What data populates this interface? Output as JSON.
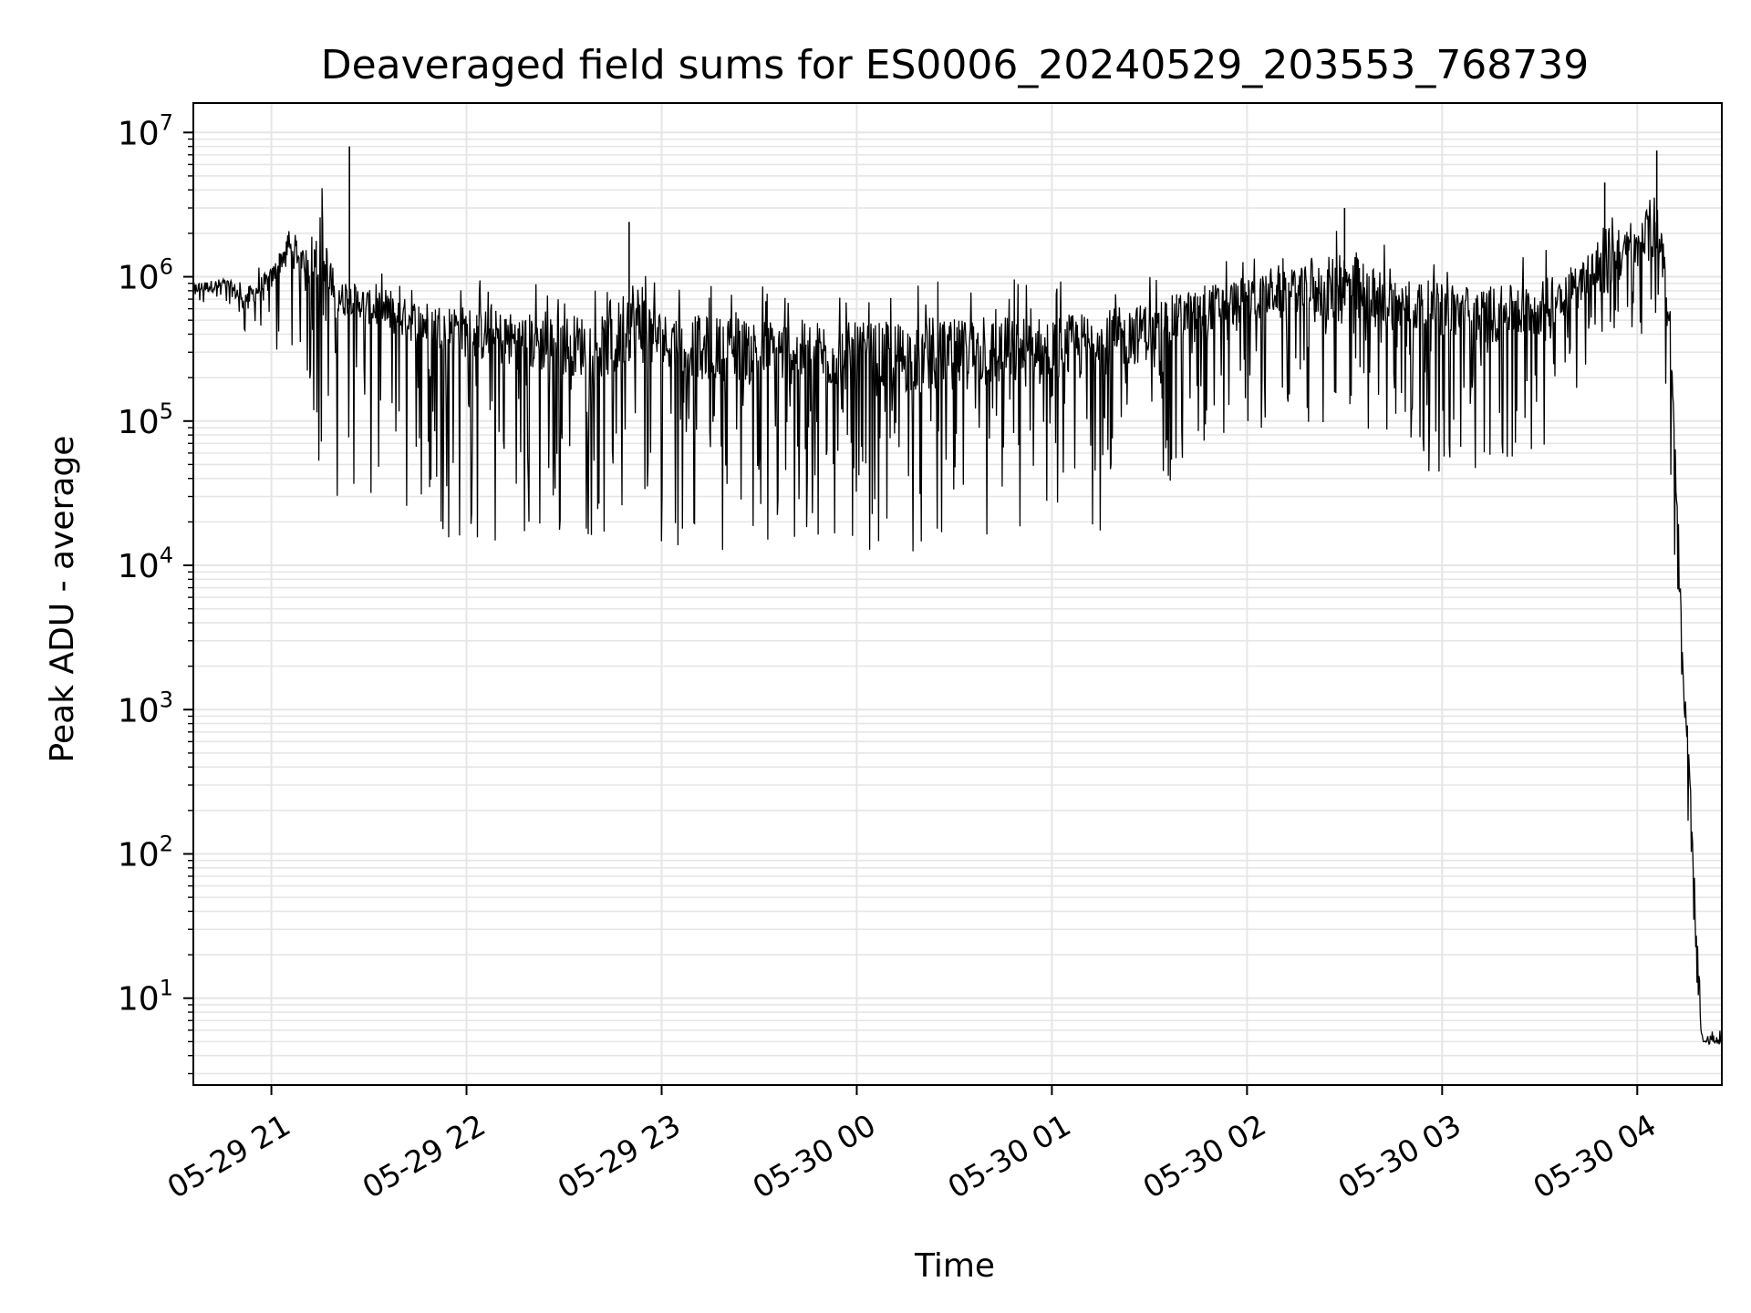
{
  "chart_data": {
    "type": "line",
    "title": "Deaveraged field sums for ES0006_20240529_203553_768739",
    "xlabel": "Time",
    "ylabel": "Peak ADU - average",
    "yscale": "log",
    "ylim": [
      2.5,
      16000000
    ],
    "xlim": [
      "2024-05-29 20:36",
      "2024-05-30 04:26"
    ],
    "grid": true,
    "grid_color": "#e6e6e6",
    "line_color": "#000000",
    "x_ticks": [
      {
        "value": "2024-05-29 21:00",
        "label": "05-29 21"
      },
      {
        "value": "2024-05-29 22:00",
        "label": "05-29 22"
      },
      {
        "value": "2024-05-29 23:00",
        "label": "05-29 23"
      },
      {
        "value": "2024-05-30 00:00",
        "label": "05-30 00"
      },
      {
        "value": "2024-05-30 01:00",
        "label": "05-30 01"
      },
      {
        "value": "2024-05-30 02:00",
        "label": "05-30 02"
      },
      {
        "value": "2024-05-30 03:00",
        "label": "05-30 03"
      },
      {
        "value": "2024-05-30 04:00",
        "label": "05-30 04"
      }
    ],
    "y_ticks": [
      {
        "value": 10,
        "base": "10",
        "exp": "1"
      },
      {
        "value": 100,
        "base": "10",
        "exp": "2"
      },
      {
        "value": 1000,
        "base": "10",
        "exp": "3"
      },
      {
        "value": 10000,
        "base": "10",
        "exp": "4"
      },
      {
        "value": 100000,
        "base": "10",
        "exp": "5"
      },
      {
        "value": 1000000,
        "base": "10",
        "exp": "6"
      },
      {
        "value": 10000000,
        "base": "10",
        "exp": "7"
      }
    ],
    "series": [
      {
        "x": [
          "2024-05-29 20:36",
          "2024-05-29 20:46",
          "2024-05-29 20:52",
          "2024-05-29 21:00",
          "2024-05-29 21:05",
          "2024-05-29 21:10",
          "2024-05-29 21:15",
          "2024-05-29 21:20",
          "2024-05-29 21:25",
          "2024-05-29 21:30",
          "2024-05-29 21:40",
          "2024-05-29 21:50",
          "2024-05-29 22:00",
          "2024-05-29 22:15",
          "2024-05-29 22:30",
          "2024-05-29 22:45",
          "2024-05-29 22:50",
          "2024-05-29 23:00",
          "2024-05-29 23:15",
          "2024-05-29 23:30",
          "2024-05-29 23:45",
          "2024-05-30 00:00",
          "2024-05-30 00:15",
          "2024-05-30 00:30",
          "2024-05-30 00:45",
          "2024-05-30 01:00",
          "2024-05-30 01:15",
          "2024-05-30 01:30",
          "2024-05-30 01:45",
          "2024-05-30 02:00",
          "2024-05-30 02:15",
          "2024-05-30 02:30",
          "2024-05-30 02:45",
          "2024-05-30 03:00",
          "2024-05-30 03:15",
          "2024-05-30 03:30",
          "2024-05-30 03:45",
          "2024-05-30 03:50",
          "2024-05-30 03:55",
          "2024-05-30 04:00",
          "2024-05-30 04:05",
          "2024-05-30 04:08",
          "2024-05-30 04:10",
          "2024-05-30 04:14",
          "2024-05-30 04:16",
          "2024-05-30 04:18",
          "2024-05-30 04:20",
          "2024-05-30 04:21",
          "2024-05-30 04:22",
          "2024-05-30 04:26"
        ],
        "y": [
          800000,
          850000,
          650000,
          900000,
          1500000,
          1200000,
          800000,
          600000,
          650000,
          550000,
          450000,
          400000,
          350000,
          300000,
          280000,
          260000,
          400000,
          300000,
          260000,
          250000,
          240000,
          220000,
          220000,
          230000,
          240000,
          240000,
          280000,
          350000,
          500000,
          600000,
          700000,
          650000,
          550000,
          500000,
          450000,
          500000,
          900000,
          1000000,
          1200000,
          1300000,
          1800000,
          1200000,
          500000,
          2000,
          300,
          20,
          5,
          5,
          5,
          5
        ],
        "min_envelope": [
          600000,
          650000,
          400000,
          300000,
          250000,
          300000,
          40000,
          30000,
          25000,
          20000,
          18000,
          15000,
          14000,
          13000,
          15000,
          16000,
          15000,
          14000,
          13000,
          12000,
          11000,
          13000,
          12000,
          13000,
          13000,
          14000,
          15000,
          30000,
          50000,
          80000,
          90000,
          90000,
          60000,
          40000,
          40000,
          50000,
          250000,
          350000,
          450000,
          400000,
          300000,
          150000,
          60000,
          800,
          100,
          10,
          5,
          5,
          5,
          5
        ],
        "max_envelope": [
          1000000,
          1100000,
          1000000,
          1400000,
          2500000,
          1800000,
          8000000,
          1300000,
          1200000,
          1100000,
          1050000,
          1000000,
          1000000,
          950000,
          950000,
          950000,
          2400000,
          950000,
          950000,
          920000,
          900000,
          900000,
          920000,
          950000,
          1000000,
          1000000,
          1050000,
          1100000,
          1300000,
          1500000,
          1600000,
          3000000,
          1600000,
          1500000,
          1400000,
          1500000,
          2000000,
          4500000,
          3000000,
          3000000,
          7500000,
          3500000,
          1000000,
          3000,
          800,
          80,
          6,
          6,
          6,
          6
        ],
        "spikes": [
          {
            "x": "2024-05-29 21:24",
            "y": 8000000
          },
          {
            "x": "2024-05-29 22:50",
            "y": 2400000
          },
          {
            "x": "2024-05-30 02:30",
            "y": 3000000
          },
          {
            "x": "2024-05-30 03:50",
            "y": 4500000
          },
          {
            "x": "2024-05-30 04:06",
            "y": 7500000
          }
        ]
      }
    ]
  }
}
